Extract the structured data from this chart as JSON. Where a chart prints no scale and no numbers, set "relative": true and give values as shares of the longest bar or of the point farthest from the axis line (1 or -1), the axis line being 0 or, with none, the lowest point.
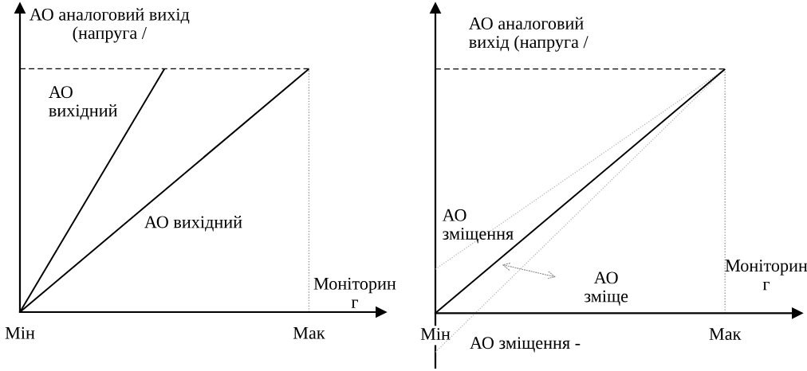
{
  "chart_data": [
    {
      "type": "line",
      "ylabel": "АО аналоговий вихід\n(напруга /",
      "xlabel": "Моніторин\nг",
      "relative": true,
      "categories": [
        "Мін",
        null,
        "Мак"
      ],
      "series": [
        {
          "name": "АО\nвихідний",
          "color": "#000000",
          "line_style": "solid",
          "values": [
            0,
            1,
            null
          ]
        },
        {
          "name": "АО вихідний",
          "color": "#000000",
          "line_style": "solid",
          "values": [
            0,
            0.5,
            1
          ]
        }
      ],
      "ref_lines": [
        {
          "axis": "y",
          "value": 1,
          "color": "#000000",
          "line_style": "dashed"
        },
        {
          "axis": "x",
          "value": "Мак",
          "color": "#999999",
          "line_style": "dotted"
        }
      ]
    },
    {
      "type": "line",
      "ylabel": "АО аналоговий\nвихід (напруга /",
      "xlabel": "Моніторин\nг",
      "relative": true,
      "categories": [
        "Мін",
        null,
        "Мак"
      ],
      "series": [
        {
          "color": "#000000",
          "line_style": "solid",
          "values": [
            0,
            0.5,
            1
          ]
        },
        {
          "name": "АО\nзміщення",
          "color": "#b3b3b3",
          "line_style": "dotted",
          "values": [
            0.18,
            0.59,
            1
          ]
        },
        {
          "name": "АО зміщення -",
          "color": "#b3b3b3",
          "line_style": "dotted",
          "values": [
            -0.16,
            0.42,
            1
          ]
        }
      ],
      "ref_lines": [
        {
          "axis": "y",
          "value": 1,
          "color": "#000000",
          "line_style": "dashed"
        },
        {
          "axis": "x",
          "value": "Мак",
          "color": "#999999",
          "line_style": "dotted"
        }
      ],
      "annotations": [
        "АО\nзміще"
      ]
    }
  ]
}
